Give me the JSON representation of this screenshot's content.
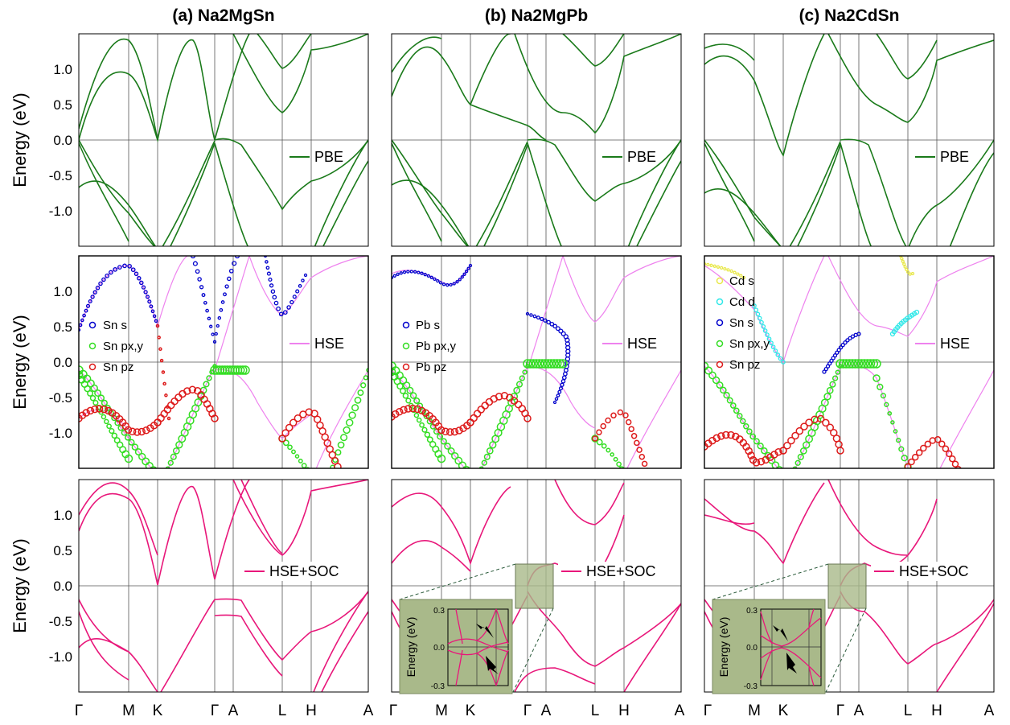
{
  "figure": {
    "column_titles": [
      "(a) Na2MgSn",
      "(b) Na2MgPb",
      "(c) Na2CdSn"
    ],
    "ylabel": "Energy (eV)",
    "kpath": [
      "Γ",
      "M",
      "K",
      "Γ",
      "A",
      "L",
      "H",
      "A"
    ],
    "yticks": [
      "1.0",
      "0.5",
      "0.0",
      "-0.5",
      "-1.0"
    ]
  },
  "colors": {
    "pbe": "#1a7a1a",
    "hse_line": "#ee82ee",
    "soc": "#e8177a",
    "s_orb": "#0000cc",
    "pxy_orb": "#33dd22",
    "pz_orb": "#dd1a1a",
    "cd_s": "#e8e84a",
    "cd_d": "#30e8e8",
    "inset_bg": "#a9b98a"
  },
  "chart_data": [
    {
      "type": "line",
      "panel": "a-PBE",
      "ylim": [
        -1.5,
        1.5
      ],
      "xlabel": "",
      "ylabel": "Energy (eV)",
      "categories": [
        "Γ",
        "M",
        "K",
        "Γ",
        "A",
        "L",
        "H",
        "A"
      ],
      "legend": [
        "PBE"
      ],
      "series": [
        {
          "name": "PBE",
          "points": [
            [
              "Γ",
              0.0
            ],
            [
              "K",
              0.0
            ],
            [
              "Γ",
              0.0
            ],
            [
              "A",
              -0.02
            ],
            [
              "L",
              0.38
            ],
            [
              "L",
              -0.82
            ]
          ]
        }
      ]
    },
    {
      "type": "line",
      "panel": "b-PBE",
      "ylim": [
        -1.5,
        1.5
      ],
      "ylabel": "Energy (eV)",
      "categories": [
        "Γ",
        "M",
        "K",
        "Γ",
        "A",
        "L",
        "H",
        "A"
      ],
      "legend": [
        "PBE"
      ],
      "series": [
        {
          "name": "PBE",
          "points": [
            [
              "Γ",
              0.0
            ],
            [
              "Γ",
              0.18
            ],
            [
              "A",
              0.0
            ],
            [
              "L",
              0.1
            ],
            [
              "H",
              -0.62
            ]
          ]
        }
      ]
    },
    {
      "type": "line",
      "panel": "c-PBE",
      "ylim": [
        -1.5,
        1.5
      ],
      "ylabel": "Energy (eV)",
      "categories": [
        "Γ",
        "M",
        "K",
        "Γ",
        "A",
        "L",
        "H",
        "A"
      ],
      "legend": [
        "PBE"
      ],
      "series": [
        {
          "name": "PBE",
          "points": [
            [
              "K",
              -0.22
            ],
            [
              "Γ",
              0.0
            ],
            [
              "A",
              0.0
            ],
            [
              "L",
              0.27
            ],
            [
              "H",
              -1.0
            ]
          ]
        }
      ]
    },
    {
      "type": "scatter",
      "panel": "a-HSE",
      "ylim": [
        -1.5,
        1.5
      ],
      "ylabel": "Energy (eV)",
      "categories": [
        "Γ",
        "M",
        "K",
        "Γ",
        "A",
        "L",
        "H",
        "A"
      ],
      "legend": [
        "Sn s",
        "Sn px,y",
        "Sn pz",
        "HSE"
      ],
      "series": [
        {
          "name": "Sn s",
          "points": [
            [
              "Γ",
              0.36
            ],
            [
              "L",
              0.65
            ]
          ]
        },
        {
          "name": "Sn px,y",
          "points": [
            [
              "Γ",
              -0.1
            ],
            [
              "A",
              -0.1
            ],
            [
              "L",
              -1.1
            ]
          ]
        },
        {
          "name": "Sn pz",
          "points": [
            [
              "K",
              0.22
            ],
            [
              "H",
              -0.72
            ]
          ]
        },
        {
          "name": "HSE",
          "points": []
        }
      ]
    },
    {
      "type": "scatter",
      "panel": "b-HSE",
      "ylim": [
        -1.5,
        1.5
      ],
      "ylabel": "Energy (eV)",
      "categories": [
        "Γ",
        "M",
        "K",
        "Γ",
        "A",
        "L",
        "H",
        "A"
      ],
      "legend": [
        "Pb s",
        "Pb px,y",
        "Pb pz",
        "HSE"
      ],
      "series": [
        {
          "name": "Pb s",
          "points": [
            [
              "Γ",
              0.65
            ],
            [
              "A",
              0.57
            ],
            [
              "L",
              0.5
            ]
          ]
        },
        {
          "name": "Pb px,y",
          "points": [
            [
              "Γ",
              -0.05
            ],
            [
              "A",
              -0.05
            ],
            [
              "L",
              -1.0
            ]
          ]
        },
        {
          "name": "Pb pz",
          "points": [
            [
              "K",
              -0.46
            ],
            [
              "H",
              -0.68
            ]
          ]
        },
        {
          "name": "HSE",
          "points": []
        }
      ]
    },
    {
      "type": "scatter",
      "panel": "c-HSE",
      "ylim": [
        -1.5,
        1.5
      ],
      "ylabel": "Energy (eV)",
      "categories": [
        "Γ",
        "M",
        "K",
        "Γ",
        "A",
        "L",
        "H",
        "A"
      ],
      "legend": [
        "Cd s",
        "Cd d",
        "Sn s",
        "Sn px,y",
        "Sn pz",
        "HSE"
      ],
      "series": [
        {
          "name": "Cd s",
          "points": [
            [
              "Γ",
              1.25
            ]
          ]
        },
        {
          "name": "Cd d",
          "points": [
            [
              "K",
              0.0
            ],
            [
              "L",
              0.57
            ]
          ]
        },
        {
          "name": "Sn s",
          "points": [
            [
              "Γ",
              0.42
            ]
          ]
        },
        {
          "name": "Sn px,y",
          "points": [
            [
              "Γ",
              0.0
            ],
            [
              "A",
              0.0
            ]
          ]
        },
        {
          "name": "Sn pz",
          "points": [
            [
              "K",
              -0.73
            ],
            [
              "H",
              -0.87
            ]
          ]
        },
        {
          "name": "HSE",
          "points": []
        }
      ]
    },
    {
      "type": "line",
      "panel": "a-SOC",
      "ylim": [
        -1.5,
        1.5
      ],
      "ylabel": "Energy (eV)",
      "categories": [
        "Γ",
        "M",
        "K",
        "Γ",
        "A",
        "L",
        "H",
        "A"
      ],
      "legend": [
        "HSE+SOC"
      ],
      "series": [
        {
          "name": "HSE+SOC",
          "points": [
            [
              "K",
              0.03
            ],
            [
              "Γ",
              -0.2
            ],
            [
              "A",
              -0.15
            ],
            [
              "L",
              0.42
            ],
            [
              "L",
              -0.98
            ]
          ]
        }
      ]
    },
    {
      "type": "line",
      "panel": "b-SOC",
      "ylim": [
        -1.5,
        1.5
      ],
      "ylabel": "Energy (eV)",
      "categories": [
        "Γ",
        "M",
        "K",
        "Γ",
        "A",
        "L",
        "H",
        "A"
      ],
      "legend": [
        "HSE+SOC"
      ],
      "inset": {
        "ylabel": "Energy (eV)",
        "ylim": [
          -0.3,
          0.3
        ],
        "yticks": [
          "0.3",
          "0.0",
          "-0.3"
        ]
      },
      "series": [
        {
          "name": "HSE+SOC",
          "points": [
            [
              "Γ",
              0.0
            ],
            [
              "A",
              0.22
            ],
            [
              "L",
              0.12
            ],
            [
              "H",
              -1.08
            ]
          ]
        }
      ]
    },
    {
      "type": "line",
      "panel": "c-SOC",
      "ylim": [
        -1.5,
        1.5
      ],
      "ylabel": "Energy (eV)",
      "categories": [
        "Γ",
        "M",
        "K",
        "Γ",
        "A",
        "L",
        "H",
        "A"
      ],
      "legend": [
        "HSE+SOC"
      ],
      "inset": {
        "ylabel": "Energy (eV)",
        "ylim": [
          -0.3,
          0.3
        ],
        "yticks": [
          "0.3",
          "0.0",
          "-0.3"
        ]
      },
      "series": [
        {
          "name": "HSE+SOC",
          "points": [
            [
              "Γ",
              0.0
            ],
            [
              "A",
              0.3
            ],
            [
              "A",
              -0.35
            ],
            [
              "L",
              0.32
            ],
            [
              "H",
              -1.0
            ]
          ]
        }
      ]
    }
  ]
}
